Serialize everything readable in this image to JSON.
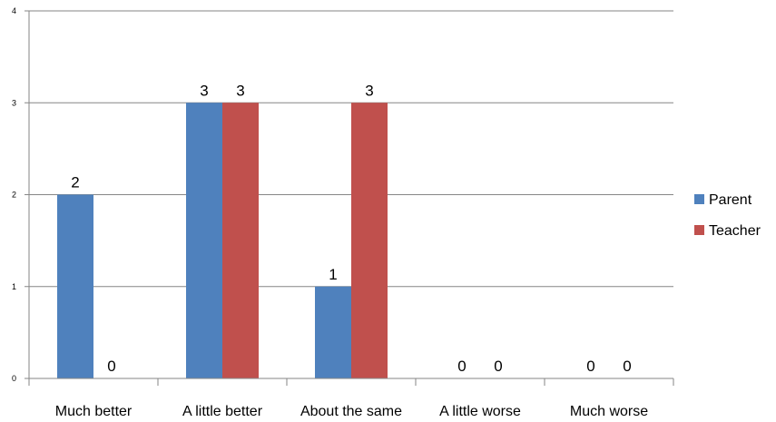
{
  "chart_data": {
    "type": "bar",
    "categories": [
      "Much better",
      "A little better",
      "About the same",
      "A little worse",
      "Much worse"
    ],
    "series": [
      {
        "name": "Parent",
        "values": [
          2,
          3,
          1,
          0,
          0
        ],
        "color": "#4F81BD"
      },
      {
        "name": "Teacher",
        "values": [
          0,
          3,
          3,
          0,
          0
        ],
        "color": "#C0504D"
      }
    ],
    "yticks": [
      0,
      1,
      2,
      3,
      4
    ],
    "ylim": [
      0,
      4
    ],
    "grid": true,
    "legend_position": "right",
    "data_labels": true
  }
}
